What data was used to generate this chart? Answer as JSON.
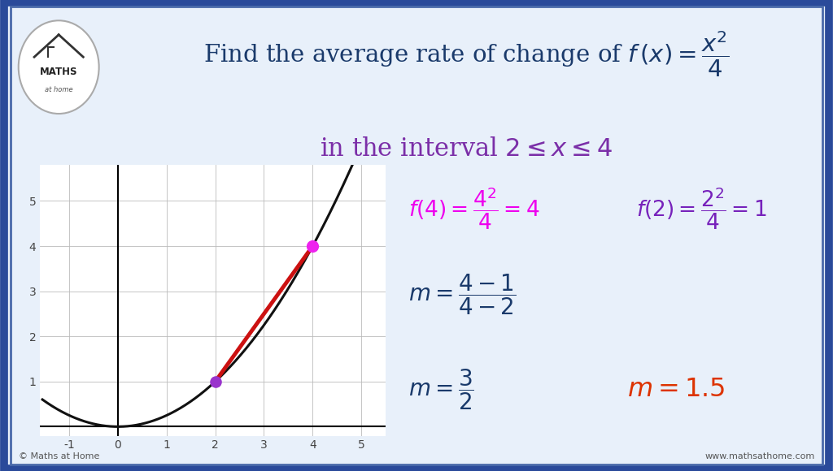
{
  "title_color": "#1a3a6b",
  "interval_color": "#7b2fa8",
  "bg_color": "#dce6f5",
  "inner_bg": "#e8f0fa",
  "border_color_outer": "#2a4a9a",
  "border_color_inner": "#4a6aaa",
  "graph_xlim": [
    -1.6,
    5.5
  ],
  "graph_ylim": [
    -0.2,
    5.8
  ],
  "curve_color": "#111111",
  "secant_color": "#cc1111",
  "point1": [
    2,
    1
  ],
  "point2": [
    4,
    4
  ],
  "point1_color": "#9933cc",
  "point2_color": "#ee22ee",
  "formula_magenta": "#ee00ee",
  "formula_purple": "#7722bb",
  "formula_blue": "#1a3a6b",
  "formula_red": "#dd3300",
  "footer_left": "© Maths at Home",
  "footer_right": "www.mathsathome.com",
  "graph_bg": "#ffffff"
}
